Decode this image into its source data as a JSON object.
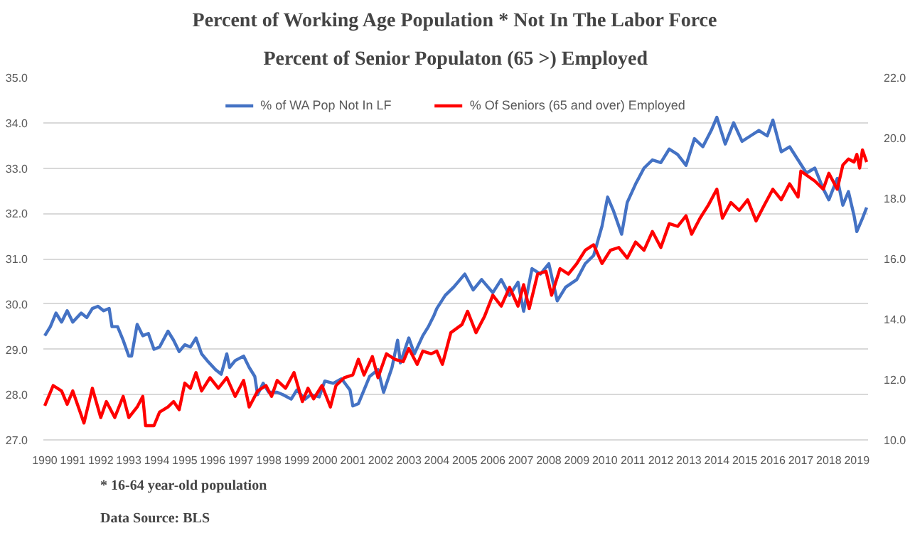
{
  "chart_data": {
    "type": "line",
    "title": "Percent of Working Age Population * Not In The Labor Force",
    "subtitle": "Percent of Senior Populaton (65 >) Employed",
    "xlim": [
      1989.95,
      2019.4
    ],
    "xticks": [
      1990,
      1991,
      1992,
      1993,
      1994,
      1995,
      1996,
      1997,
      1998,
      1999,
      2000,
      2001,
      2002,
      2003,
      2004,
      2005,
      2006,
      2007,
      2008,
      2009,
      2010,
      2011,
      2012,
      2013,
      2014,
      2015,
      2016,
      2017,
      2018,
      2019
    ],
    "ylim": [
      27,
      35
    ],
    "yticks": [
      {
        "value": 27,
        "label": "27.0"
      },
      {
        "value": 28,
        "label": "28.0"
      },
      {
        "value": 29,
        "label": "29.0"
      },
      {
        "value": 30,
        "label": "30.0"
      },
      {
        "value": 31,
        "label": "31.0"
      },
      {
        "value": 32,
        "label": "32.0"
      },
      {
        "value": 33,
        "label": "33.0"
      },
      {
        "value": 34,
        "label": "34.0"
      },
      {
        "value": 35,
        "label": "35.0"
      }
    ],
    "y2lim": [
      10,
      22
    ],
    "y2ticks": [
      {
        "value": 10,
        "label": "10.0"
      },
      {
        "value": 12,
        "label": "12.0"
      },
      {
        "value": 14,
        "label": "14.0"
      },
      {
        "value": 16,
        "label": "16.0"
      },
      {
        "value": 18,
        "label": "18.0"
      },
      {
        "value": 20,
        "label": "20.0"
      },
      {
        "value": 22,
        "label": "22.0"
      }
    ],
    "grid": "y",
    "legend": "top",
    "line_style": "solid",
    "series": [
      {
        "name": "% of WA Pop Not In LF",
        "color": "#4472c4",
        "x": [
          1990.0,
          1990.2,
          1990.4,
          1990.6,
          1990.8,
          1991.0,
          1991.3,
          1991.5,
          1991.7,
          1991.9,
          1992.1,
          1992.3,
          1992.4,
          1992.6,
          1992.8,
          1993.0,
          1993.1,
          1993.3,
          1993.5,
          1993.7,
          1993.9,
          1994.1,
          1994.4,
          1994.6,
          1994.8,
          1995.0,
          1995.2,
          1995.4,
          1995.6,
          1995.8,
          1996.1,
          1996.3,
          1996.5,
          1996.6,
          1996.8,
          1997.1,
          1997.3,
          1997.5,
          1997.6,
          1997.8,
          1998.0,
          1998.3,
          1998.5,
          1998.8,
          1999.0,
          1999.3,
          1999.5,
          1999.8,
          2000.0,
          2000.3,
          2000.6,
          2000.9,
          2001.0,
          2001.2,
          2001.4,
          2001.6,
          2001.9,
          2002.1,
          2002.4,
          2002.6,
          2002.7,
          2003.0,
          2003.2,
          2003.5,
          2003.7,
          2003.9,
          2004.0,
          2004.3,
          2004.6,
          2005.0,
          2005.3,
          2005.6,
          2006.0,
          2006.3,
          2006.6,
          2006.9,
          2007.1,
          2007.4,
          2007.7,
          2008.0,
          2008.3,
          2008.6,
          2009.0,
          2009.3,
          2009.6,
          2009.9,
          2010.1,
          2010.3,
          2010.6,
          2010.8,
          2011.1,
          2011.4,
          2011.7,
          2012.0,
          2012.3,
          2012.6,
          2012.9,
          2013.2,
          2013.5,
          2013.8,
          2014.0,
          2014.3,
          2014.6,
          2014.9,
          2015.2,
          2015.5,
          2015.8,
          2016.0,
          2016.3,
          2016.6,
          2016.9,
          2017.2,
          2017.5,
          2017.8,
          2018.0,
          2018.3,
          2018.5,
          2018.7,
          2018.9,
          2019.0,
          2019.2,
          2019.35
        ],
        "values": [
          29.3,
          29.5,
          29.8,
          29.6,
          29.85,
          29.6,
          29.8,
          29.7,
          29.9,
          29.95,
          29.85,
          29.9,
          29.5,
          29.5,
          29.2,
          28.85,
          28.85,
          29.55,
          29.3,
          29.35,
          29.0,
          29.05,
          29.4,
          29.2,
          28.95,
          29.1,
          29.05,
          29.25,
          28.9,
          28.75,
          28.55,
          28.45,
          28.9,
          28.6,
          28.75,
          28.85,
          28.6,
          28.4,
          28.0,
          28.25,
          28.05,
          28.05,
          28.0,
          27.9,
          28.1,
          27.9,
          28.0,
          27.95,
          28.3,
          28.25,
          28.35,
          28.1,
          27.75,
          27.8,
          28.1,
          28.4,
          28.55,
          28.05,
          28.6,
          29.2,
          28.7,
          29.25,
          28.9,
          29.3,
          29.5,
          29.75,
          29.9,
          30.19,
          30.37,
          30.66,
          30.31,
          30.54,
          30.25,
          30.54,
          30.19,
          30.48,
          29.84,
          30.78,
          30.66,
          30.89,
          30.07,
          30.37,
          30.54,
          30.89,
          31.07,
          31.72,
          32.36,
          32.07,
          31.54,
          32.24,
          32.65,
          33.0,
          33.18,
          33.12,
          33.42,
          33.3,
          33.06,
          33.65,
          33.47,
          33.83,
          34.12,
          33.53,
          34.0,
          33.59,
          33.71,
          33.83,
          33.71,
          34.06,
          33.36,
          33.47,
          33.18,
          32.89,
          33.0,
          32.54,
          32.3,
          32.77,
          32.18,
          32.48,
          31.95,
          31.6,
          31.89,
          32.13
        ]
      },
      {
        "name": "% Of Seniors (65 and over) Employed",
        "color": "#ff0000",
        "axis": "y2",
        "x": [
          1990.0,
          1990.3,
          1990.6,
          1990.8,
          1991.0,
          1991.2,
          1991.4,
          1991.7,
          1992.0,
          1992.2,
          1992.5,
          1992.8,
          1993.0,
          1993.3,
          1993.5,
          1993.6,
          1993.9,
          1994.1,
          1994.4,
          1994.6,
          1994.8,
          1995.0,
          1995.2,
          1995.4,
          1995.6,
          1995.9,
          1996.2,
          1996.5,
          1996.8,
          1997.1,
          1997.3,
          1997.6,
          1997.9,
          1998.1,
          1998.3,
          1998.6,
          1998.9,
          1999.2,
          1999.4,
          1999.6,
          1999.9,
          2000.2,
          2000.4,
          2000.7,
          2001.0,
          2001.2,
          2001.4,
          2001.7,
          2001.9,
          2002.2,
          2002.5,
          2002.8,
          2003.0,
          2003.3,
          2003.5,
          2003.8,
          2004.0,
          2004.2,
          2004.5,
          2004.9,
          2005.1,
          2005.4,
          2005.7,
          2006.0,
          2006.3,
          2006.6,
          2006.9,
          2007.1,
          2007.3,
          2007.6,
          2007.9,
          2008.1,
          2008.4,
          2008.7,
          2009.0,
          2009.3,
          2009.6,
          2009.9,
          2010.2,
          2010.5,
          2010.8,
          2011.1,
          2011.4,
          2011.7,
          2012.0,
          2012.3,
          2012.6,
          2012.9,
          2013.1,
          2013.4,
          2013.7,
          2014.0,
          2014.2,
          2014.5,
          2014.8,
          2015.1,
          2015.4,
          2015.7,
          2016.0,
          2016.3,
          2016.6,
          2016.9,
          2017.0,
          2017.5,
          2017.8,
          2018.0,
          2018.3,
          2018.5,
          2018.7,
          2018.9,
          2019.0,
          2019.1,
          2019.2,
          2019.35
        ],
        "values": [
          11.13,
          11.8,
          11.62,
          11.18,
          11.62,
          11.09,
          10.56,
          11.71,
          10.74,
          11.27,
          10.74,
          11.44,
          10.74,
          11.09,
          11.44,
          10.47,
          10.47,
          10.92,
          11.09,
          11.27,
          11.0,
          11.88,
          11.71,
          12.23,
          11.62,
          12.06,
          11.71,
          12.06,
          11.44,
          11.97,
          11.09,
          11.62,
          11.8,
          11.44,
          11.97,
          11.71,
          12.23,
          11.27,
          11.71,
          11.36,
          11.8,
          11.09,
          11.8,
          12.06,
          12.15,
          12.67,
          12.15,
          12.76,
          12.06,
          12.85,
          12.67,
          12.59,
          13.03,
          12.5,
          12.94,
          12.85,
          12.94,
          12.5,
          13.55,
          13.82,
          14.26,
          13.55,
          14.08,
          14.79,
          14.43,
          15.05,
          14.43,
          15.14,
          14.35,
          15.49,
          15.58,
          14.79,
          15.67,
          15.49,
          15.84,
          16.28,
          16.46,
          15.84,
          16.28,
          16.37,
          16.02,
          16.55,
          16.28,
          16.9,
          16.37,
          17.16,
          17.07,
          17.42,
          16.81,
          17.34,
          17.78,
          18.3,
          17.34,
          17.86,
          17.6,
          17.95,
          17.25,
          17.78,
          18.3,
          17.95,
          18.48,
          18.04,
          18.9,
          18.57,
          18.3,
          18.83,
          18.3,
          19.1,
          19.3,
          19.2,
          19.45,
          19.0,
          19.6,
          19.2
        ]
      }
    ],
    "annotations": [
      "* 16-64 year-old population",
      "Data Source:    BLS"
    ]
  }
}
